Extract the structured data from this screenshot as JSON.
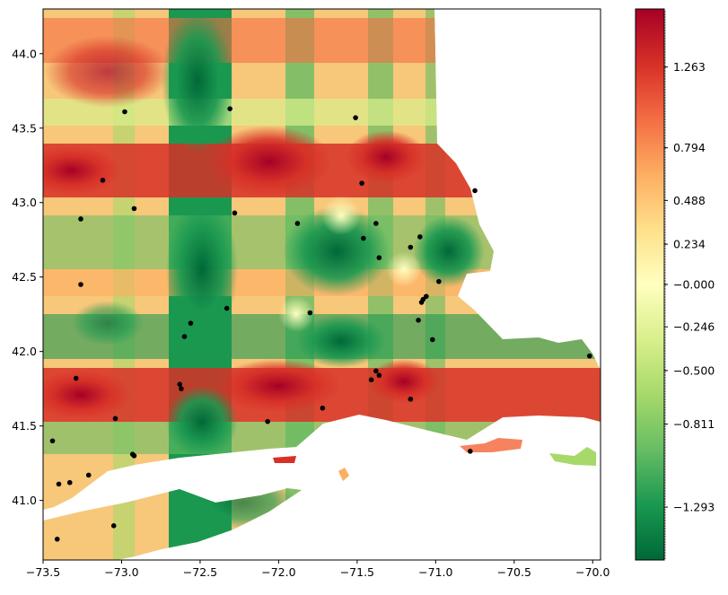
{
  "chart_data": {
    "type": "heatmap",
    "title": "",
    "xlabel": "",
    "ylabel": "",
    "xlim": [
      -73.5,
      -69.95
    ],
    "ylim": [
      40.6,
      44.3
    ],
    "grid": false,
    "colormap": "RdYlGn_r",
    "x_ticks": [
      {
        "value": -73.5,
        "label": "−73.5"
      },
      {
        "value": -73.0,
        "label": "−73.0"
      },
      {
        "value": -72.5,
        "label": "−72.5"
      },
      {
        "value": -72.0,
        "label": "−72.0"
      },
      {
        "value": -71.5,
        "label": "−71.5"
      },
      {
        "value": -71.0,
        "label": "−71.0"
      },
      {
        "value": -70.5,
        "label": "−70.5"
      },
      {
        "value": -70.0,
        "label": "−70.0"
      }
    ],
    "y_ticks": [
      {
        "value": 41.0,
        "label": "41.0"
      },
      {
        "value": 41.5,
        "label": "41.5"
      },
      {
        "value": 42.0,
        "label": "42.0"
      },
      {
        "value": 42.5,
        "label": "42.5"
      },
      {
        "value": 43.0,
        "label": "43.0"
      },
      {
        "value": 43.5,
        "label": "43.5"
      },
      {
        "value": 44.0,
        "label": "44.0"
      }
    ],
    "colorbar": {
      "range": [
        -1.6,
        1.6
      ],
      "ticks": [
        {
          "value": 1.263,
          "label": "1.263"
        },
        {
          "value": 0.794,
          "label": "0.794"
        },
        {
          "value": 0.488,
          "label": "0.488"
        },
        {
          "value": 0.234,
          "label": "0.234"
        },
        {
          "value": 0.0,
          "label": "−0.000"
        },
        {
          "value": -0.246,
          "label": "−0.246"
        },
        {
          "value": -0.5,
          "label": "−0.500"
        },
        {
          "value": -0.811,
          "label": "−0.811"
        },
        {
          "value": -1.293,
          "label": "−1.293"
        }
      ]
    },
    "points": [
      {
        "lon": -72.98,
        "lat": 43.61
      },
      {
        "lon": -72.31,
        "lat": 43.63
      },
      {
        "lon": -71.51,
        "lat": 43.57
      },
      {
        "lon": -73.12,
        "lat": 43.15
      },
      {
        "lon": -72.92,
        "lat": 42.96
      },
      {
        "lon": -72.28,
        "lat": 42.93
      },
      {
        "lon": -71.88,
        "lat": 42.86
      },
      {
        "lon": -71.47,
        "lat": 43.13
      },
      {
        "lon": -71.38,
        "lat": 42.86
      },
      {
        "lon": -73.26,
        "lat": 42.89
      },
      {
        "lon": -71.46,
        "lat": 42.76
      },
      {
        "lon": -71.16,
        "lat": 42.7
      },
      {
        "lon": -71.1,
        "lat": 42.77
      },
      {
        "lon": -70.75,
        "lat": 43.08
      },
      {
        "lon": -71.36,
        "lat": 42.63
      },
      {
        "lon": -73.26,
        "lat": 42.45
      },
      {
        "lon": -70.98,
        "lat": 42.47
      },
      {
        "lon": -71.06,
        "lat": 42.37
      },
      {
        "lon": -71.08,
        "lat": 42.35
      },
      {
        "lon": -71.09,
        "lat": 42.33
      },
      {
        "lon": -72.33,
        "lat": 42.29
      },
      {
        "lon": -71.8,
        "lat": 42.26
      },
      {
        "lon": -71.11,
        "lat": 42.21
      },
      {
        "lon": -72.56,
        "lat": 42.19
      },
      {
        "lon": -72.6,
        "lat": 42.1
      },
      {
        "lon": -71.02,
        "lat": 42.08
      },
      {
        "lon": -70.02,
        "lat": 41.97
      },
      {
        "lon": -71.38,
        "lat": 41.87
      },
      {
        "lon": -71.36,
        "lat": 41.84
      },
      {
        "lon": -73.29,
        "lat": 41.82
      },
      {
        "lon": -71.41,
        "lat": 41.81
      },
      {
        "lon": -72.63,
        "lat": 41.78
      },
      {
        "lon": -72.62,
        "lat": 41.75
      },
      {
        "lon": -71.16,
        "lat": 41.68
      },
      {
        "lon": -71.72,
        "lat": 41.62
      },
      {
        "lon": -73.04,
        "lat": 41.55
      },
      {
        "lon": -72.07,
        "lat": 41.53
      },
      {
        "lon": -73.44,
        "lat": 41.4
      },
      {
        "lon": -72.93,
        "lat": 41.31
      },
      {
        "lon": -72.92,
        "lat": 41.3
      },
      {
        "lon": -70.78,
        "lat": 41.33
      },
      {
        "lon": -73.21,
        "lat": 41.17
      },
      {
        "lon": -73.4,
        "lat": 41.11
      },
      {
        "lon": -73.33,
        "lat": 41.12
      },
      {
        "lon": -73.05,
        "lat": 40.83
      },
      {
        "lon": -73.41,
        "lat": 40.74
      }
    ]
  }
}
